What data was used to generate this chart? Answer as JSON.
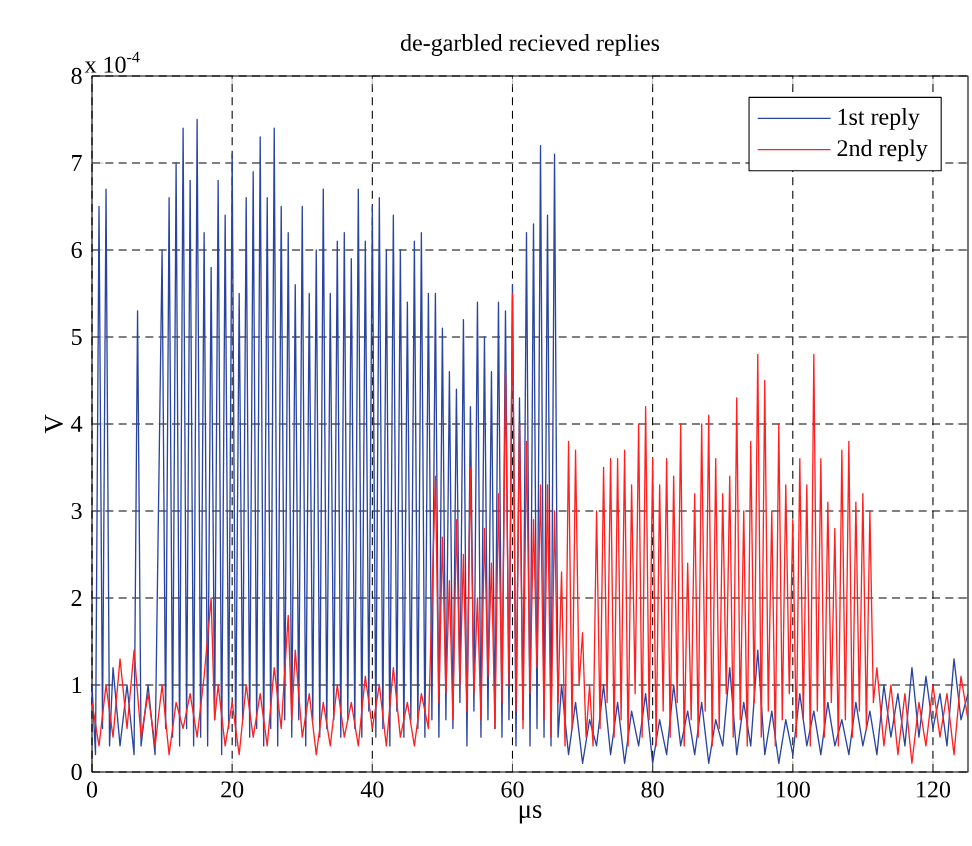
{
  "chart_data": {
    "type": "line",
    "title": "de-garbled recieved replies",
    "xlabel": "μs",
    "ylabel": "V",
    "annotations": [
      "x 10$^{-4}$"
    ],
    "xlim": [
      0,
      125
    ],
    "ylim": [
      0,
      8
    ],
    "xticks": [
      0,
      20,
      40,
      60,
      80,
      100,
      120
    ],
    "yticks": [
      0,
      1,
      2,
      3,
      4,
      5,
      6,
      7,
      8
    ],
    "grid": true,
    "legend": "top right",
    "marker": "none",
    "line_style": "solid",
    "series": [
      {
        "name": "1st reply",
        "color": "#2a45a0",
        "x": [
          0,
          0.5,
          1,
          1.5,
          2,
          2.5,
          3,
          4,
          5,
          6,
          6.5,
          7,
          8,
          9,
          10,
          10.5,
          11,
          11.5,
          12,
          12.5,
          13,
          13.5,
          14,
          14.5,
          15,
          15.5,
          16,
          16.5,
          17,
          17.5,
          18,
          18.5,
          19,
          19.5,
          20,
          20.5,
          21,
          21.5,
          22,
          22.5,
          23,
          23.5,
          24,
          24.5,
          25,
          25.5,
          26,
          26.5,
          27,
          27.5,
          28,
          28.5,
          29,
          29.5,
          30,
          30.5,
          31,
          31.5,
          32,
          32.5,
          33,
          33.5,
          34,
          34.5,
          35,
          35.5,
          36,
          36.5,
          37,
          37.5,
          38,
          38.5,
          39,
          39.5,
          40,
          40.5,
          41,
          41.5,
          42,
          42.5,
          43,
          43.5,
          44,
          44.5,
          45,
          45.5,
          46,
          46.5,
          47,
          47.5,
          48,
          48.5,
          49,
          49.5,
          50,
          50.5,
          51,
          51.5,
          52,
          52.5,
          53,
          53.5,
          54,
          54.5,
          55,
          55.5,
          56,
          56.5,
          57,
          57.5,
          58,
          58.5,
          59,
          59.5,
          60,
          60.5,
          61,
          61.5,
          62,
          62.5,
          63,
          63.5,
          64,
          64.5,
          65,
          65.5,
          66,
          66.5,
          67,
          68,
          69,
          70,
          71,
          72,
          73,
          74,
          75,
          76,
          77,
          78,
          79,
          80,
          81,
          82,
          83,
          84,
          85,
          86,
          87,
          88,
          89,
          90,
          91,
          92,
          93,
          94,
          95,
          96,
          97,
          98,
          99,
          100,
          101,
          102,
          103,
          104,
          105,
          106,
          107,
          108,
          109,
          110,
          111,
          112,
          113,
          114,
          115,
          116,
          117,
          118,
          119,
          120,
          121,
          122,
          123,
          124,
          125
        ],
        "values": [
          1.0,
          0.2,
          6.5,
          0.5,
          6.7,
          0.3,
          1.2,
          0.3,
          1.0,
          0.2,
          5.3,
          0.3,
          1.0,
          0.2,
          6.0,
          0.5,
          6.6,
          0.4,
          7.0,
          0.3,
          7.4,
          0.5,
          6.8,
          0.3,
          7.5,
          0.4,
          6.2,
          0.3,
          5.8,
          0.6,
          6.8,
          0.2,
          6.4,
          0.5,
          7.1,
          0.3,
          5.5,
          0.6,
          6.6,
          0.4,
          6.9,
          0.5,
          7.3,
          0.3,
          6.6,
          0.5,
          7.4,
          0.3,
          6.5,
          0.6,
          6.2,
          0.4,
          5.6,
          0.6,
          6.5,
          0.3,
          5.5,
          0.6,
          6.0,
          0.4,
          6.7,
          0.5,
          5.5,
          0.6,
          6.1,
          0.4,
          6.2,
          0.6,
          5.9,
          0.5,
          6.7,
          0.4,
          6.1,
          0.7,
          6.5,
          0.4,
          6.6,
          0.5,
          6.0,
          0.3,
          6.4,
          0.7,
          6.0,
          0.4,
          5.4,
          0.6,
          6.1,
          0.5,
          6.2,
          0.4,
          5.5,
          0.6,
          5.5,
          0.4,
          5.1,
          0.6,
          4.6,
          0.5,
          4.4,
          0.8,
          5.2,
          0.3,
          4.2,
          0.7,
          5.4,
          0.4,
          5.0,
          0.6,
          4.6,
          0.5,
          5.4,
          0.4,
          5.3,
          0.6,
          5.6,
          0.3,
          4.3,
          0.6,
          6.2,
          0.3,
          6.3,
          0.5,
          7.2,
          0.4,
          6.4,
          0.3,
          7.1,
          0.4,
          1.0,
          0.2,
          0.8,
          0.1,
          0.6,
          0.3,
          1.0,
          0.2,
          0.8,
          0.1,
          0.7,
          0.3,
          0.9,
          0.1,
          0.6,
          0.2,
          1.0,
          0.3,
          0.7,
          0.2,
          0.8,
          0.1,
          0.6,
          0.3,
          1.2,
          0.2,
          0.8,
          0.3,
          1.4,
          0.2,
          0.7,
          0.1,
          0.6,
          0.2,
          0.9,
          0.3,
          0.7,
          0.2,
          0.8,
          0.3,
          0.6,
          0.2,
          0.8,
          0.3,
          0.7,
          0.2,
          1.0,
          0.4,
          0.9,
          0.3,
          1.2,
          0.4,
          1.1,
          0.5,
          0.9,
          0.3,
          1.3,
          0.6,
          0.9
        ]
      },
      {
        "name": "2nd reply",
        "color": "#ff2020",
        "x": [
          0,
          1,
          2,
          3,
          4,
          5,
          6,
          7,
          8,
          9,
          10,
          11,
          12,
          13,
          14,
          15,
          16,
          17,
          17.5,
          18,
          19,
          20,
          21,
          22,
          23,
          24,
          25,
          26,
          27,
          28,
          28.5,
          29,
          30,
          31,
          32,
          33,
          34,
          35,
          36,
          37,
          38,
          39,
          40,
          41,
          42,
          43,
          44,
          45,
          46,
          47,
          48,
          49,
          49.5,
          50,
          50.5,
          51,
          51.5,
          52,
          52.5,
          53,
          53.5,
          54,
          54.5,
          55,
          55.5,
          56,
          56.5,
          57,
          57.5,
          58,
          58.5,
          59,
          59.5,
          60,
          60.5,
          61,
          61.5,
          62,
          62.5,
          63,
          63.5,
          64,
          64.5,
          65,
          65.5,
          66,
          66.5,
          67,
          67.5,
          68,
          68.5,
          69,
          69.5,
          70,
          70.5,
          71,
          71.5,
          72,
          72.5,
          73,
          73.5,
          74,
          74.5,
          75,
          75.5,
          76,
          76.5,
          77,
          77.5,
          78,
          78.5,
          79,
          79.5,
          80,
          80.5,
          81,
          81.5,
          82,
          82.5,
          83,
          83.5,
          84,
          84.5,
          85,
          85.5,
          86,
          86.5,
          87,
          87.5,
          88,
          88.5,
          89,
          89.5,
          90,
          90.5,
          91,
          91.5,
          92,
          92.5,
          93,
          93.5,
          94,
          94.5,
          95,
          95.5,
          96,
          96.5,
          97,
          97.5,
          98,
          98.5,
          99,
          99.5,
          100,
          100.5,
          101,
          101.5,
          102,
          102.5,
          103,
          103.5,
          104,
          104.5,
          105,
          105.5,
          106,
          106.5,
          107,
          107.5,
          108,
          108.5,
          109,
          109.5,
          110,
          110.5,
          111,
          111.5,
          112,
          113,
          114,
          115,
          116,
          117,
          118,
          119,
          120,
          121,
          122,
          123,
          124,
          125
        ],
        "values": [
          0.8,
          0.3,
          1.0,
          0.4,
          1.3,
          0.5,
          1.4,
          0.4,
          0.9,
          0.3,
          1.0,
          0.2,
          0.8,
          0.5,
          0.9,
          0.4,
          1.1,
          2.0,
          0.6,
          1.0,
          0.3,
          0.8,
          0.2,
          1.0,
          0.4,
          0.9,
          0.3,
          1.2,
          0.5,
          1.8,
          0.6,
          1.4,
          0.4,
          0.9,
          0.2,
          0.8,
          0.3,
          1.0,
          0.4,
          0.8,
          0.3,
          1.1,
          0.5,
          1.0,
          0.3,
          1.2,
          0.4,
          0.8,
          0.3,
          0.9,
          0.5,
          3.4,
          0.8,
          2.7,
          0.9,
          2.2,
          0.6,
          2.9,
          1.0,
          2.5,
          0.7,
          3.5,
          0.9,
          2.0,
          0.6,
          2.8,
          1.1,
          2.4,
          0.5,
          3.2,
          0.8,
          4.6,
          1.0,
          5.5,
          0.7,
          4.0,
          0.5,
          3.8,
          0.9,
          2.9,
          1.2,
          3.3,
          0.6,
          3.3,
          0.4,
          3.0,
          0.8,
          2.3,
          0.3,
          3.8,
          0.5,
          3.7,
          1.0,
          1.6,
          0.4,
          1.0,
          0.3,
          3.0,
          0.5,
          3.5,
          0.8,
          3.6,
          0.4,
          3.6,
          0.6,
          3.7,
          0.3,
          3.3,
          0.9,
          4.0,
          0.4,
          4.2,
          0.6,
          3.6,
          0.3,
          3.3,
          0.7,
          3.6,
          0.4,
          3.4,
          0.8,
          4.0,
          0.3,
          2.4,
          0.6,
          3.2,
          0.4,
          4.0,
          0.7,
          4.1,
          0.3,
          3.6,
          0.5,
          3.2,
          0.9,
          3.4,
          0.4,
          4.3,
          0.6,
          3.0,
          0.3,
          3.8,
          0.8,
          4.8,
          0.4,
          4.5,
          0.7,
          3.0,
          0.3,
          4.0,
          0.6,
          3.3,
          0.9,
          2.9,
          0.4,
          3.6,
          0.6,
          3.3,
          0.3,
          4.8,
          0.7,
          3.6,
          0.4,
          3.1,
          0.8,
          2.8,
          0.3,
          3.7,
          0.6,
          3.8,
          0.4,
          3.1,
          0.7,
          3.2,
          0.5,
          3.0,
          0.8,
          1.2,
          0.3,
          1.0,
          0.2,
          0.9,
          0.1,
          0.8,
          0.3,
          1.0,
          0.4,
          0.9,
          0.2,
          1.1,
          0.6
        ]
      }
    ]
  }
}
